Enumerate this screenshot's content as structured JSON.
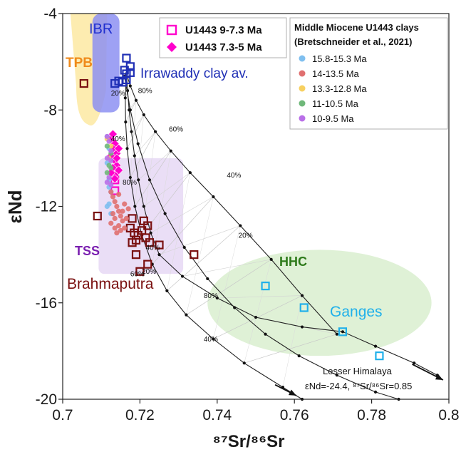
{
  "chart_data": {
    "type": "scatter",
    "xlabel": "⁸⁷Sr/⁸⁶Sr",
    "ylabel": "εNd",
    "xlim": [
      0.7,
      0.8
    ],
    "ylim": [
      -20,
      -4
    ],
    "x_ticks": [
      "0.7",
      "0.72",
      "0.74",
      "0.76",
      "0.78",
      "0.8"
    ],
    "y_ticks": [
      "-4",
      "-8",
      "-12",
      "-16",
      "-20"
    ],
    "x_tick_values": [
      0.7,
      0.72,
      0.74,
      0.76,
      0.78,
      0.8
    ],
    "y_tick_values": [
      -4,
      -8,
      -12,
      -16,
      -20
    ],
    "legend_main": {
      "placement": "top-center",
      "entries": [
        {
          "label": "U1443 9-7.3 Ma",
          "marker": "open-square",
          "color": "#ff00cc"
        },
        {
          "label": "U1443 7.3-5 Ma",
          "marker": "diamond",
          "color": "#ff00cc"
        }
      ]
    },
    "legend_clays": {
      "placement": "top-right",
      "title_line1": "Middle Miocene U1443 clays",
      "title_line2": "(Bretschneider et al., 2021)",
      "entries": [
        {
          "label": "15.8-15.3 Ma",
          "color": "#7fbfef"
        },
        {
          "label": "14-13.5 Ma",
          "color": "#e07070"
        },
        {
          "label": "13.3-12.8 Ma",
          "color": "#f7d060"
        },
        {
          "label": "11-10.5 Ma",
          "color": "#6fb87a"
        },
        {
          "label": "10-9.5 Ma",
          "color": "#b96fe8"
        }
      ]
    },
    "region_labels": {
      "ibr": "IBR",
      "tpb": "TPB",
      "irrawaddy": "Irrawaddy clay av.",
      "tss": "TSS",
      "brahmaputra": "Brahmaputra",
      "hhc": "HHC",
      "ganges": "Ganges",
      "lesser_himalaya": "Lesser Himalaya",
      "lh_values": "εNd=-24.4, ⁸⁷Sr/⁸⁶Sr=0.85"
    },
    "mixing_labels": [
      {
        "text": "80%",
        "x": 0.7195,
        "y": -7.3
      },
      {
        "text": "20%",
        "x": 0.7125,
        "y": -7.4
      },
      {
        "text": "60%",
        "x": 0.7275,
        "y": -8.9
      },
      {
        "text": "40%",
        "x": 0.7425,
        "y": -10.8
      },
      {
        "text": "40%",
        "x": 0.7125,
        "y": -9.3
      },
      {
        "text": "80%",
        "x": 0.7155,
        "y": -11.1
      },
      {
        "text": "20%",
        "x": 0.7455,
        "y": -13.3
      },
      {
        "text": "40%",
        "x": 0.7215,
        "y": -13.8
      },
      {
        "text": "60%",
        "x": 0.7175,
        "y": -14.9
      },
      {
        "text": "20%",
        "x": 0.7205,
        "y": -14.8
      },
      {
        "text": "80%",
        "x": 0.7365,
        "y": -15.8
      },
      {
        "text": "40%",
        "x": 0.7365,
        "y": -17.6
      }
    ],
    "series": [
      {
        "name": "U1443 9-7.3 Ma",
        "marker": "open-square",
        "color": "#ff00cc",
        "points": [
          [
            0.7135,
            -10.9
          ],
          [
            0.7135,
            -11.35
          ]
        ]
      },
      {
        "name": "U1443 7.3-5 Ma",
        "marker": "diamond",
        "color": "#ff00cc",
        "points": [
          [
            0.7125,
            -9.2
          ],
          [
            0.7135,
            -9.4
          ],
          [
            0.713,
            -9.6
          ],
          [
            0.714,
            -9.8
          ],
          [
            0.7125,
            -9.9
          ],
          [
            0.7135,
            -10.1
          ],
          [
            0.714,
            -10.3
          ],
          [
            0.713,
            -10.4
          ],
          [
            0.7145,
            -10.5
          ],
          [
            0.7135,
            -10.7
          ],
          [
            0.7125,
            -10.6
          ],
          [
            0.714,
            -10.0
          ],
          [
            0.7145,
            -9.6
          ],
          [
            0.713,
            -9.0
          ],
          [
            0.7135,
            -10.85
          ]
        ]
      },
      {
        "name": "Brahmaputra",
        "marker": "open-square",
        "color": "#7a1010",
        "points": [
          [
            0.7055,
            -6.9
          ],
          [
            0.709,
            -12.4
          ],
          [
            0.718,
            -12.5
          ],
          [
            0.7175,
            -12.9
          ],
          [
            0.7185,
            -13.1
          ],
          [
            0.719,
            -13.4
          ],
          [
            0.718,
            -13.5
          ],
          [
            0.7195,
            -13.2
          ],
          [
            0.721,
            -12.6
          ],
          [
            0.722,
            -12.8
          ],
          [
            0.7205,
            -13.0
          ],
          [
            0.7215,
            -13.3
          ],
          [
            0.7225,
            -13.5
          ],
          [
            0.725,
            -13.6
          ],
          [
            0.719,
            -14.0
          ],
          [
            0.72,
            -14.7
          ],
          [
            0.722,
            -14.4
          ],
          [
            0.734,
            -14.0
          ]
        ]
      },
      {
        "name": "Irrawaddy clay av.",
        "marker": "open-square",
        "color": "#1f2fb5",
        "points": [
          [
            0.7165,
            -5.85
          ],
          [
            0.7175,
            -6.2
          ],
          [
            0.716,
            -6.35
          ],
          [
            0.7165,
            -6.75
          ],
          [
            0.7155,
            -6.85
          ],
          [
            0.7135,
            -6.9
          ],
          [
            0.7145,
            -6.8
          ],
          [
            0.7165,
            -6.5
          ],
          [
            0.7175,
            -6.45
          ]
        ]
      },
      {
        "name": "Ganges",
        "marker": "open-square",
        "color": "#1fb0ea",
        "points": [
          [
            0.7525,
            -15.3
          ],
          [
            0.7625,
            -16.2
          ],
          [
            0.7725,
            -17.2
          ],
          [
            0.782,
            -18.2
          ]
        ]
      },
      {
        "name": "15.8-15.3 Ma",
        "marker": "circle",
        "color": "#7fbfef",
        "points": [
          [
            0.7115,
            -9.1
          ],
          [
            0.712,
            -9.6
          ],
          [
            0.7115,
            -10.2
          ],
          [
            0.712,
            -10.9
          ],
          [
            0.7125,
            -11.4
          ],
          [
            0.712,
            -11.9
          ],
          [
            0.7125,
            -12.3
          ],
          [
            0.7115,
            -12.0
          ],
          [
            0.712,
            -11.2
          ]
        ]
      },
      {
        "name": "14-13.5 Ma",
        "marker": "circle",
        "color": "#e07070",
        "points": [
          [
            0.7125,
            -11.4
          ],
          [
            0.713,
            -11.6
          ],
          [
            0.7135,
            -11.8
          ],
          [
            0.714,
            -12.0
          ],
          [
            0.7145,
            -12.2
          ],
          [
            0.715,
            -12.4
          ],
          [
            0.7155,
            -12.6
          ],
          [
            0.7145,
            -12.8
          ],
          [
            0.7135,
            -12.9
          ],
          [
            0.714,
            -13.1
          ],
          [
            0.715,
            -13.0
          ],
          [
            0.716,
            -12.9
          ],
          [
            0.7155,
            -12.2
          ],
          [
            0.716,
            -11.9
          ],
          [
            0.713,
            -12.3
          ],
          [
            0.7125,
            -12.7
          ],
          [
            0.7145,
            -11.5
          ],
          [
            0.7165,
            -12.5
          ],
          [
            0.717,
            -12.1
          ],
          [
            0.7135,
            -12.5
          ]
        ]
      },
      {
        "name": "13.3-12.8 Ma",
        "marker": "circle",
        "color": "#f7d060",
        "points": [
          [
            0.7115,
            -9.2
          ],
          [
            0.7125,
            -9.5
          ],
          [
            0.712,
            -10.0
          ]
        ]
      },
      {
        "name": "11-10.5 Ma",
        "marker": "circle",
        "color": "#6fb87a",
        "points": [
          [
            0.7115,
            -9.5
          ],
          [
            0.7125,
            -9.8
          ],
          [
            0.712,
            -10.3
          ],
          [
            0.7115,
            -10.6
          ],
          [
            0.7125,
            -10.4
          ]
        ]
      },
      {
        "name": "10-9.5 Ma",
        "marker": "circle",
        "color": "#b96fe8",
        "points": [
          [
            0.7115,
            -9.1
          ],
          [
            0.712,
            -9.3
          ],
          [
            0.7125,
            -9.7
          ],
          [
            0.7115,
            -10.0
          ],
          [
            0.7125,
            -10.1
          ],
          [
            0.712,
            -10.8
          ],
          [
            0.7115,
            -11.0
          ],
          [
            0.7125,
            -11.1
          ]
        ]
      }
    ],
    "mixing_curves": [
      {
        "name": "curve-a",
        "points": [
          [
            0.7165,
            -6.5
          ],
          [
            0.7175,
            -7.0
          ],
          [
            0.719,
            -7.6
          ],
          [
            0.721,
            -8.2
          ],
          [
            0.724,
            -8.9
          ],
          [
            0.728,
            -9.7
          ],
          [
            0.733,
            -10.6
          ],
          [
            0.739,
            -11.6
          ],
          [
            0.746,
            -12.8
          ],
          [
            0.754,
            -14.2
          ],
          [
            0.762,
            -15.7
          ],
          [
            0.771,
            -17.3
          ]
        ]
      },
      {
        "name": "curve-b",
        "points": [
          [
            0.7165,
            -6.5
          ],
          [
            0.7168,
            -7.2
          ],
          [
            0.7172,
            -8.0
          ],
          [
            0.7178,
            -8.9
          ],
          [
            0.7186,
            -9.9
          ],
          [
            0.7196,
            -10.9
          ],
          [
            0.721,
            -12.0
          ],
          [
            0.7228,
            -13.1
          ],
          [
            0.725,
            -14.0
          ],
          [
            0.731,
            -14.9
          ],
          [
            0.74,
            -15.8
          ],
          [
            0.75,
            -16.6
          ],
          [
            0.762,
            -17.0
          ],
          [
            0.7725,
            -17.2
          ],
          [
            0.781,
            -17.8
          ],
          [
            0.791,
            -18.5
          ],
          [
            0.797,
            -19.0
          ]
        ]
      },
      {
        "name": "curve-c",
        "points": [
          [
            0.7165,
            -6.5
          ],
          [
            0.7162,
            -7.5
          ],
          [
            0.7163,
            -8.5
          ],
          [
            0.7167,
            -9.6
          ],
          [
            0.7175,
            -10.8
          ],
          [
            0.7187,
            -12.0
          ],
          [
            0.7205,
            -13.2
          ],
          [
            0.7232,
            -14.4
          ],
          [
            0.727,
            -15.5
          ],
          [
            0.732,
            -16.5
          ],
          [
            0.739,
            -17.5
          ],
          [
            0.747,
            -18.5
          ],
          [
            0.757,
            -19.5
          ],
          [
            0.762,
            -20.0
          ]
        ]
      },
      {
        "name": "curve-d",
        "points": [
          [
            0.716,
            -6.6
          ],
          [
            0.7175,
            -8.0
          ],
          [
            0.7195,
            -9.4
          ],
          [
            0.7225,
            -10.9
          ],
          [
            0.7265,
            -12.3
          ],
          [
            0.7315,
            -13.7
          ],
          [
            0.7375,
            -15.0
          ],
          [
            0.7445,
            -16.2
          ],
          [
            0.7525,
            -17.3
          ],
          [
            0.7612,
            -18.2
          ],
          [
            0.771,
            -19.0
          ],
          [
            0.781,
            -19.7
          ],
          [
            0.787,
            -20.0
          ]
        ]
      }
    ]
  }
}
